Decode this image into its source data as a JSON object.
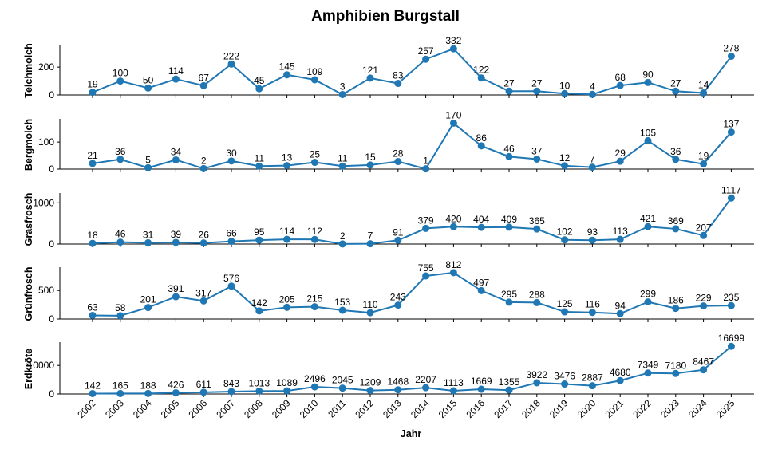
{
  "chart_data": {
    "type": "line",
    "title": "Amphibien Burgstall",
    "xlabel": "Jahr",
    "x": [
      "2002",
      "2003",
      "2004",
      "2005",
      "2006",
      "2007",
      "2008",
      "2009",
      "2010",
      "2011",
      "2012",
      "2013",
      "2014",
      "2015",
      "2016",
      "2017",
      "2018",
      "2019",
      "2020",
      "2021",
      "2022",
      "2023",
      "2024",
      "2025"
    ],
    "color": "#1f77b4",
    "grid": false,
    "subplots": [
      {
        "ylabel": "Teichmolch",
        "ylim": [
          0,
          350
        ],
        "yticks": [
          0,
          200
        ],
        "values": [
          19,
          100,
          50,
          114,
          67,
          222,
          45,
          145,
          109,
          3,
          121,
          83,
          257,
          332,
          122,
          27,
          27,
          10,
          4,
          68,
          90,
          27,
          14,
          278
        ]
      },
      {
        "ylabel": "Bergmolch",
        "ylim": [
          0,
          180
        ],
        "yticks": [
          0,
          100
        ],
        "values": [
          21,
          36,
          5,
          34,
          2,
          30,
          11,
          13,
          25,
          11,
          15,
          28,
          1,
          170,
          86,
          46,
          37,
          12,
          7,
          29,
          105,
          36,
          19,
          137
        ]
      },
      {
        "ylabel": "Grasfrosch",
        "ylim": [
          0,
          1200
        ],
        "yticks": [
          0,
          1000
        ],
        "values": [
          18,
          46,
          31,
          39,
          26,
          66,
          95,
          114,
          112,
          2,
          7,
          91,
          379,
          420,
          404,
          409,
          365,
          102,
          93,
          113,
          421,
          369,
          207,
          1117
        ]
      },
      {
        "ylabel": "Grünfrosch",
        "ylim": [
          0,
          880
        ],
        "yticks": [
          0,
          500
        ],
        "values": [
          63,
          58,
          201,
          391,
          317,
          576,
          142,
          205,
          215,
          153,
          110,
          243,
          755,
          812,
          497,
          295,
          288,
          125,
          116,
          94,
          299,
          186,
          229,
          235
        ]
      },
      {
        "ylabel": "Erdkröte",
        "ylim": [
          0,
          17600
        ],
        "yticks": [
          0,
          10000
        ],
        "values": [
          142,
          165,
          188,
          426,
          611,
          843,
          1013,
          1089,
          2496,
          2045,
          1209,
          1468,
          2207,
          1113,
          1669,
          1355,
          3922,
          3476,
          2887,
          4680,
          7349,
          7180,
          8467,
          16699
        ]
      }
    ]
  }
}
